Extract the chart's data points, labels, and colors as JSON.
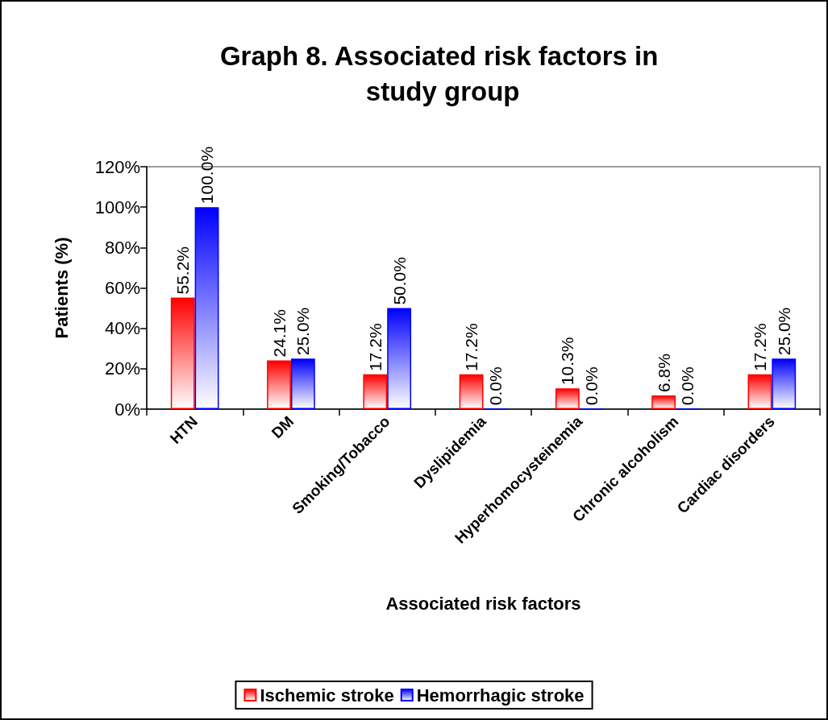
{
  "chart_data": {
    "type": "bar",
    "title": "Graph 8. Associated risk factors in study group",
    "xlabel": "Associated risk factors",
    "ylabel": "Patients (%)",
    "categories": [
      "HTN",
      "DM",
      "Smoking/Tobacco",
      "Dyslipidemia",
      "Hyperhomocysteinemia",
      "Chronic alcoholism",
      "Cardiac disorders"
    ],
    "series": [
      {
        "name": "Ischemic stroke",
        "color": "#ff0000",
        "values": [
          55.2,
          24.1,
          17.2,
          17.2,
          10.3,
          6.8,
          17.2
        ],
        "value_labels": [
          "55.2%",
          "24.1%",
          "17.2%",
          "17.2%",
          "10.3%",
          "6.8%",
          "17.2%"
        ]
      },
      {
        "name": "Hemorrhagic stroke",
        "color": "#0000ff",
        "values": [
          100,
          25,
          50,
          0,
          0,
          0,
          25
        ],
        "value_labels": [
          "100.0%",
          "25.0%",
          "50.0%",
          "0.0%",
          "0.0%",
          "0.0%",
          "25.0%"
        ]
      }
    ],
    "ylim": [
      0,
      120
    ],
    "yticks": [
      {
        "value": 0,
        "label": "0%"
      },
      {
        "value": 20,
        "label": "20%"
      },
      {
        "value": 40,
        "label": "40%"
      },
      {
        "value": 60,
        "label": "60%"
      },
      {
        "value": 80,
        "label": "80%"
      },
      {
        "value": 100,
        "label": "100%"
      },
      {
        "value": 120,
        "label": "120%"
      }
    ],
    "grid": false,
    "legend": "bottom"
  }
}
